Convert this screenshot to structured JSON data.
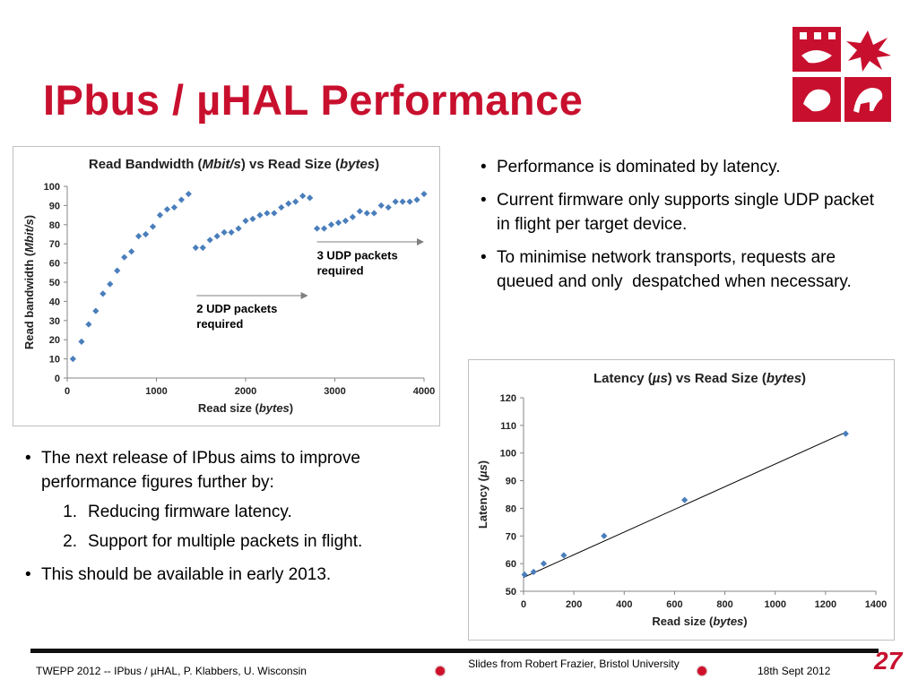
{
  "slide": {
    "title": "IPbus / µHAL Performance",
    "accent_color": "#c8102e",
    "page_number": "27"
  },
  "logo": {
    "icon": "university-crest-icon",
    "color": "#c8102e"
  },
  "right_bullets": [
    "Performance is dominated by latency.",
    "Current firmware only supports single UDP packet in flight per target device.",
    "To minimise network transports, requests are queued and only  despatched when necessary."
  ],
  "left_bullets": {
    "item1": "The next release of IPbus aims to improve performance figures further by:",
    "sub": [
      "Reducing firmware latency.",
      "Support for multiple packets in flight."
    ],
    "sub_numbers": [
      "1.",
      "2."
    ],
    "item2": "This should be available in early 2013."
  },
  "footer": {
    "left": "TWEPP 2012 -- IPbus / µHAL, P. Klabbers, U. Wisconsin",
    "center": "Slides from Robert Frazier, Bristol University",
    "right": "18th Sept 2012"
  },
  "chart_data": [
    {
      "type": "scatter",
      "title": "Read Bandwidth (Mbit/s) vs Read Size (bytes)",
      "xlabel": "Read size (bytes)",
      "ylabel": "Read bandwidth (Mbit/s)",
      "xlim": [
        0,
        4000
      ],
      "ylim": [
        0,
        100
      ],
      "xticks": [
        0,
        1000,
        2000,
        3000,
        4000
      ],
      "yticks": [
        0,
        10,
        20,
        30,
        40,
        50,
        60,
        70,
        80,
        90,
        100
      ],
      "grid": false,
      "marker_color": "#4a7ebb",
      "series": [
        {
          "x": [
            64,
            160,
            240,
            320,
            400,
            480,
            560,
            640,
            720,
            800,
            880,
            960,
            1040,
            1120,
            1200,
            1280,
            1360,
            1440,
            1520,
            1600,
            1680,
            1760,
            1840,
            1920,
            2000,
            2080,
            2160,
            2240,
            2320,
            2400,
            2480,
            2560,
            2640,
            2720,
            2800,
            2880,
            2960,
            3040,
            3120,
            3200,
            3280,
            3360,
            3440,
            3520,
            3600,
            3680,
            3760,
            3840,
            3920,
            4000
          ],
          "y": [
            10,
            19,
            28,
            35,
            44,
            49,
            56,
            63,
            66,
            74,
            75,
            79,
            85,
            88,
            89,
            93,
            96,
            68,
            68,
            72,
            74,
            76,
            76,
            78,
            82,
            83,
            85,
            86,
            86,
            89,
            91,
            92,
            95,
            94,
            78,
            78,
            80,
            81,
            82,
            84,
            87,
            86,
            86,
            90,
            89,
            92,
            92,
            92,
            93,
            96
          ]
        }
      ],
      "annotations": [
        {
          "text_lines": [
            "2 UDP packets",
            "required"
          ],
          "arrow_from": [
            1450,
            43
          ],
          "arrow_to": [
            2700,
            43
          ],
          "label_at": [
            1450,
            34
          ]
        },
        {
          "text_lines": [
            "3 UDP packets",
            "required"
          ],
          "arrow_from": [
            2800,
            71
          ],
          "arrow_to": [
            4000,
            71
          ],
          "label_at": [
            2800,
            62
          ]
        }
      ]
    },
    {
      "type": "scatter",
      "title": "Latency (µs) vs Read Size (bytes)",
      "xlabel": "Read size (bytes)",
      "ylabel": "Latency (µs)",
      "xlim": [
        0,
        1400
      ],
      "ylim": [
        50,
        120
      ],
      "xticks": [
        0,
        200,
        400,
        600,
        800,
        1000,
        1200,
        1400
      ],
      "yticks": [
        50,
        60,
        70,
        80,
        90,
        100,
        110,
        120
      ],
      "grid": false,
      "marker_color": "#4a7ebb",
      "series": [
        {
          "x": [
            4,
            40,
            80,
            160,
            320,
            640,
            1280
          ],
          "y": [
            56,
            57,
            60,
            63,
            70,
            83,
            107
          ]
        }
      ],
      "trendline": {
        "x": [
          0,
          1280
        ],
        "y": [
          55,
          107.5
        ]
      }
    }
  ]
}
